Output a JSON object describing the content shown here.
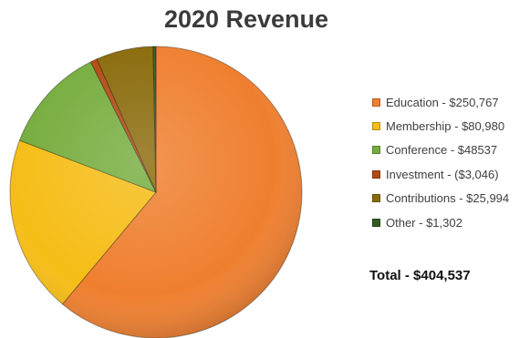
{
  "chart_data": {
    "type": "pie",
    "title": "2020 Revenue",
    "total_label": "Total - $404,537",
    "slices": [
      {
        "label": "Education - $250,767",
        "value": 250767,
        "color": "#ef7f2f"
      },
      {
        "label": "Membership - $80,980",
        "value": 80980,
        "color": "#f6bd16"
      },
      {
        "label": "Conference - $48537",
        "value": 48537,
        "color": "#76ad3e"
      },
      {
        "label": "Investment - ($3,046)",
        "value": 3046,
        "color": "#b34a12"
      },
      {
        "label": "Contributions - $25,994",
        "value": 25994,
        "color": "#8a6b0b"
      },
      {
        "label": "Other - $1,302",
        "value": 1302,
        "color": "#2f5d22"
      }
    ],
    "legend_position": "right"
  }
}
